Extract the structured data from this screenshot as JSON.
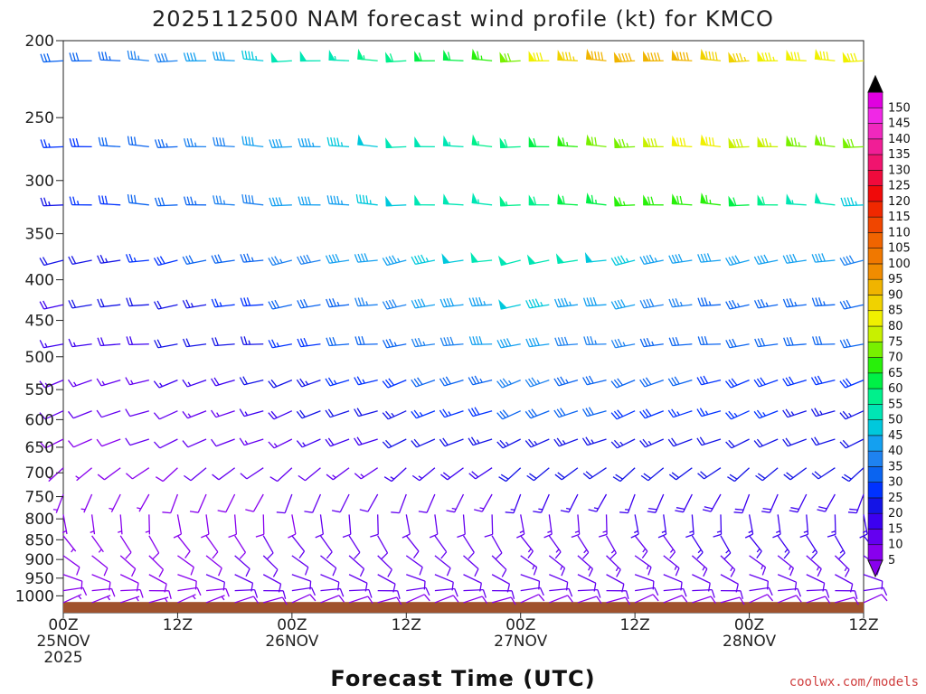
{
  "chart_data": {
    "type": "wind_barb_profile",
    "title": "2025112500 NAM forecast wind profile (kt) for KMCO",
    "xlabel": "Forecast Time (UTC)",
    "ylabel": "",
    "credit": "coolwx.com/models",
    "y_axis": {
      "scale": "pressure",
      "ylim": [
        1050,
        200
      ],
      "ticks": [
        200,
        250,
        300,
        350,
        400,
        450,
        500,
        550,
        600,
        650,
        700,
        750,
        800,
        850,
        900,
        950,
        1000
      ],
      "tick_labels": [
        "200",
        "250",
        "300",
        "350",
        "400",
        "450",
        "500",
        "550",
        "600",
        "650",
        "700",
        "750",
        "800",
        "850",
        "900",
        "950",
        "1000"
      ]
    },
    "x_axis": {
      "xlim_hours": [
        0,
        84
      ],
      "ticks": [
        {
          "hour": 0,
          "label1": "00Z",
          "label2": "25NOV",
          "label3": "2025"
        },
        {
          "hour": 12,
          "label1": "12Z",
          "label2": "",
          "label3": ""
        },
        {
          "hour": 24,
          "label1": "00Z",
          "label2": "26NOV",
          "label3": ""
        },
        {
          "hour": 36,
          "label1": "12Z",
          "label2": "",
          "label3": ""
        },
        {
          "hour": 48,
          "label1": "00Z",
          "label2": "27NOV",
          "label3": ""
        },
        {
          "hour": 60,
          "label1": "12Z",
          "label2": "",
          "label3": ""
        },
        {
          "hour": 72,
          "label1": "00Z",
          "label2": "28NOV",
          "label3": ""
        },
        {
          "hour": 84,
          "label1": "12Z",
          "label2": "",
          "label3": ""
        }
      ]
    },
    "colorbar": {
      "levels": [
        5,
        10,
        15,
        20,
        25,
        30,
        35,
        40,
        45,
        50,
        55,
        60,
        65,
        70,
        75,
        80,
        85,
        90,
        95,
        100,
        105,
        110,
        115,
        120,
        125,
        130,
        135,
        140,
        145,
        150
      ],
      "colors": [
        "#8800ee",
        "#6400f0",
        "#3c00f0",
        "#1414e6",
        "#0032ff",
        "#0a64f0",
        "#1e82f0",
        "#14a0f0",
        "#00c8dc",
        "#00e6b4",
        "#00f08c",
        "#00f046",
        "#28f00a",
        "#78f000",
        "#c8f000",
        "#f0f000",
        "#f0d200",
        "#f0b400",
        "#f08c00",
        "#f07800",
        "#f06400",
        "#f04600",
        "#f02800",
        "#f00a0a",
        "#f00a3c",
        "#f0146e",
        "#f01e96",
        "#f028be",
        "#f028e6",
        "#e000e0"
      ]
    },
    "times_hours": [
      0,
      3,
      6,
      9,
      12,
      15,
      18,
      21,
      24,
      27,
      30,
      33,
      36,
      39,
      42,
      45,
      48,
      51,
      54,
      57,
      60,
      63,
      66,
      69,
      72,
      75,
      78,
      81,
      84
    ],
    "wind_profiles": [
      {
        "level": 212,
        "dir": 275,
        "speed": [
          30,
          32,
          34,
          36,
          38,
          40,
          42,
          46,
          50,
          52,
          54,
          56,
          58,
          60,
          62,
          66,
          72,
          80,
          86,
          90,
          92,
          92,
          90,
          88,
          86,
          84,
          82,
          82,
          82
        ]
      },
      {
        "level": 272,
        "dir": 272,
        "speed": [
          26,
          28,
          30,
          32,
          34,
          36,
          38,
          40,
          42,
          44,
          46,
          48,
          50,
          52,
          54,
          56,
          58,
          62,
          66,
          70,
          74,
          78,
          80,
          80,
          78,
          76,
          74,
          72,
          70
        ]
      },
      {
        "level": 322,
        "dir": 268,
        "speed": [
          24,
          26,
          28,
          30,
          32,
          34,
          36,
          38,
          40,
          42,
          44,
          46,
          48,
          50,
          52,
          54,
          56,
          58,
          62,
          64,
          66,
          68,
          68,
          66,
          62,
          58,
          54,
          50,
          46
        ]
      },
      {
        "level": 378,
        "dir": 264,
        "speed": [
          20,
          22,
          24,
          26,
          28,
          30,
          32,
          34,
          36,
          38,
          40,
          42,
          44,
          46,
          48,
          50,
          52,
          52,
          50,
          48,
          46,
          44,
          42,
          40,
          40,
          40,
          40,
          40,
          38
        ]
      },
      {
        "level": 430,
        "dir": 262,
        "speed": [
          18,
          20,
          20,
          22,
          22,
          24,
          26,
          28,
          30,
          32,
          34,
          36,
          38,
          40,
          42,
          44,
          48,
          46,
          44,
          42,
          40,
          38,
          36,
          34,
          34,
          34,
          34,
          34,
          32
        ]
      },
      {
        "level": 482,
        "dir": 260,
        "speed": [
          16,
          16,
          18,
          18,
          20,
          20,
          22,
          24,
          26,
          28,
          30,
          32,
          34,
          36,
          38,
          40,
          42,
          40,
          38,
          36,
          36,
          34,
          32,
          30,
          30,
          30,
          30,
          30,
          30
        ]
      },
      {
        "level": 535,
        "dir": 256,
        "speed": [
          14,
          14,
          14,
          14,
          16,
          16,
          18,
          20,
          22,
          24,
          26,
          26,
          28,
          30,
          32,
          34,
          36,
          36,
          34,
          32,
          32,
          30,
          30,
          28,
          28,
          28,
          28,
          28,
          28
        ]
      },
      {
        "level": 585,
        "dir": 250,
        "speed": [
          10,
          10,
          10,
          12,
          12,
          14,
          14,
          16,
          18,
          20,
          22,
          22,
          24,
          26,
          26,
          28,
          30,
          30,
          30,
          30,
          28,
          28,
          26,
          26,
          26,
          26,
          24,
          24,
          24
        ]
      },
      {
        "level": 635,
        "dir": 244,
        "speed": [
          8,
          8,
          8,
          10,
          10,
          12,
          12,
          14,
          14,
          16,
          18,
          18,
          20,
          20,
          22,
          24,
          24,
          24,
          24,
          24,
          24,
          24,
          22,
          22,
          22,
          22,
          22,
          22,
          22
        ]
      },
      {
        "level": 690,
        "dir": 236,
        "speed": [
          6,
          6,
          8,
          8,
          8,
          10,
          10,
          10,
          12,
          12,
          14,
          14,
          16,
          16,
          18,
          18,
          20,
          20,
          20,
          20,
          20,
          20,
          20,
          20,
          20,
          20,
          20,
          20,
          20
        ]
      },
      {
        "level": 745,
        "dir": 205,
        "speed": [
          6,
          6,
          6,
          6,
          8,
          8,
          8,
          8,
          10,
          10,
          10,
          12,
          12,
          12,
          14,
          14,
          16,
          16,
          16,
          16,
          16,
          18,
          18,
          18,
          18,
          18,
          18,
          18,
          18
        ]
      },
      {
        "level": 790,
        "dir": 170,
        "speed": [
          6,
          6,
          6,
          6,
          8,
          8,
          8,
          8,
          8,
          10,
          10,
          10,
          10,
          12,
          12,
          12,
          14,
          14,
          14,
          14,
          16,
          16,
          16,
          16,
          16,
          16,
          16,
          16,
          16
        ]
      },
      {
        "level": 840,
        "dir": 150,
        "speed": [
          6,
          6,
          8,
          8,
          8,
          8,
          8,
          10,
          10,
          10,
          10,
          10,
          12,
          12,
          12,
          12,
          14,
          14,
          14,
          14,
          14,
          14,
          16,
          16,
          16,
          16,
          16,
          16,
          16
        ]
      },
      {
        "level": 890,
        "dir": 130,
        "speed": [
          8,
          8,
          8,
          8,
          8,
          8,
          10,
          10,
          10,
          10,
          10,
          12,
          12,
          12,
          12,
          12,
          14,
          14,
          14,
          14,
          14,
          14,
          14,
          14,
          14,
          14,
          14,
          14,
          14
        ]
      },
      {
        "level": 940,
        "dir": 110,
        "speed": [
          8,
          8,
          8,
          8,
          8,
          10,
          10,
          10,
          10,
          10,
          12,
          12,
          12,
          12,
          12,
          12,
          12,
          12,
          12,
          12,
          12,
          12,
          12,
          12,
          12,
          12,
          12,
          12,
          12
        ]
      },
      {
        "level": 985,
        "dir": 90,
        "speed": [
          8,
          8,
          8,
          8,
          8,
          8,
          10,
          10,
          10,
          10,
          10,
          10,
          10,
          10,
          10,
          10,
          10,
          10,
          10,
          10,
          10,
          10,
          10,
          10,
          10,
          10,
          10,
          10,
          10
        ]
      },
      {
        "level": 1020,
        "dir": 70,
        "speed": [
          6,
          6,
          6,
          6,
          6,
          6,
          8,
          8,
          8,
          8,
          8,
          8,
          8,
          8,
          8,
          8,
          8,
          8,
          8,
          8,
          8,
          8,
          8,
          8,
          8,
          8,
          8,
          8,
          8
        ]
      }
    ],
    "ground": {
      "color": "#a0522d",
      "top_pressure": 1018
    }
  }
}
